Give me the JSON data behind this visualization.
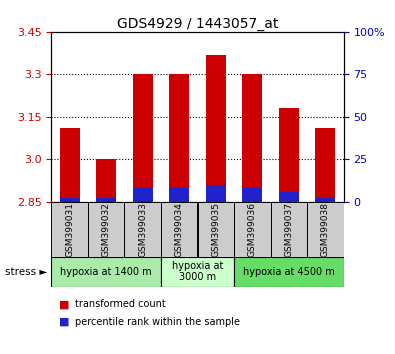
{
  "title": "GDS4929 / 1443057_at",
  "samples": [
    "GSM399031",
    "GSM399032",
    "GSM399033",
    "GSM399034",
    "GSM399035",
    "GSM399036",
    "GSM399037",
    "GSM399038"
  ],
  "red_values": [
    3.11,
    3.0,
    3.3,
    3.3,
    3.37,
    3.3,
    3.18,
    3.11
  ],
  "blue_values_pct": [
    2,
    2,
    8,
    8,
    10,
    8,
    6,
    2
  ],
  "base": 2.85,
  "ylim_left": [
    2.85,
    3.45
  ],
  "yticks_left": [
    2.85,
    3.0,
    3.15,
    3.3,
    3.45
  ],
  "ylim_right": [
    0,
    100
  ],
  "yticks_right": [
    0,
    25,
    50,
    75,
    100
  ],
  "ytick_labels_right": [
    "0",
    "25",
    "50",
    "75",
    "100%"
  ],
  "grid_lines": [
    3.0,
    3.15,
    3.3
  ],
  "bar_width": 0.55,
  "groups": [
    {
      "label": "hypoxia at 1400 m",
      "indices": [
        0,
        1,
        2
      ],
      "color": "#aaeaaa"
    },
    {
      "label": "hypoxia at\n3000 m",
      "indices": [
        3,
        4
      ],
      "color": "#ccffcc"
    },
    {
      "label": "hypoxia at 4500 m",
      "indices": [
        5,
        6,
        7
      ],
      "color": "#66dd66"
    }
  ],
  "stress_label": "stress",
  "red_color": "#cc0000",
  "blue_color": "#2222cc",
  "tick_color_left": "#cc0000",
  "tick_color_right": "#0000cc",
  "sample_bg_color": "#cccccc"
}
